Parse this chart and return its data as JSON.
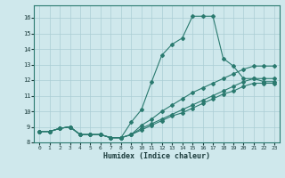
{
  "xlabel": "Humidex (Indice chaleur)",
  "xlim": [
    -0.5,
    23.5
  ],
  "ylim": [
    8.0,
    16.8
  ],
  "xticks": [
    0,
    1,
    2,
    3,
    4,
    5,
    6,
    7,
    8,
    9,
    10,
    11,
    12,
    13,
    14,
    15,
    16,
    17,
    18,
    19,
    20,
    21,
    22,
    23
  ],
  "yticks": [
    8,
    9,
    10,
    11,
    12,
    13,
    14,
    15,
    16
  ],
  "bg_color": "#cfe8ec",
  "line_color": "#2a7a6f",
  "grid_color": "#aacdd4",
  "s1_x": [
    0,
    1,
    2,
    3,
    4,
    5,
    6,
    7,
    8,
    9,
    10,
    11,
    12,
    13,
    14,
    15,
    16,
    17,
    18,
    19,
    20,
    21,
    22,
    23
  ],
  "s1_y": [
    8.7,
    8.7,
    8.9,
    9.0,
    8.5,
    8.5,
    8.5,
    8.3,
    8.3,
    9.3,
    10.1,
    11.9,
    13.6,
    14.3,
    14.7,
    16.1,
    16.1,
    16.1,
    13.4,
    12.9,
    12.1,
    12.1,
    11.9,
    11.9
  ],
  "s2_x": [
    0,
    1,
    2,
    3,
    4,
    5,
    6,
    7,
    8,
    9,
    10,
    11,
    12,
    13,
    14,
    15,
    16,
    17,
    18,
    19,
    20,
    21,
    22,
    23
  ],
  "s2_y": [
    8.7,
    8.7,
    8.9,
    9.0,
    8.5,
    8.5,
    8.5,
    8.3,
    8.3,
    8.5,
    9.1,
    9.5,
    10.0,
    10.4,
    10.8,
    11.2,
    11.5,
    11.8,
    12.1,
    12.4,
    12.7,
    12.9,
    12.9,
    12.9
  ],
  "s3_x": [
    0,
    1,
    2,
    3,
    4,
    5,
    6,
    7,
    8,
    9,
    10,
    11,
    12,
    13,
    14,
    15,
    16,
    17,
    18,
    19,
    20,
    21,
    22,
    23
  ],
  "s3_y": [
    8.7,
    8.7,
    8.9,
    9.0,
    8.5,
    8.5,
    8.5,
    8.3,
    8.3,
    8.5,
    8.9,
    9.2,
    9.5,
    9.8,
    10.1,
    10.4,
    10.7,
    11.0,
    11.3,
    11.6,
    11.9,
    12.1,
    12.1,
    12.1
  ],
  "s4_x": [
    0,
    1,
    2,
    3,
    4,
    5,
    6,
    7,
    8,
    9,
    10,
    11,
    12,
    13,
    14,
    15,
    16,
    17,
    18,
    19,
    20,
    21,
    22,
    23
  ],
  "s4_y": [
    8.7,
    8.7,
    8.9,
    9.0,
    8.5,
    8.5,
    8.5,
    8.3,
    8.3,
    8.5,
    8.8,
    9.1,
    9.4,
    9.7,
    9.9,
    10.2,
    10.5,
    10.8,
    11.1,
    11.3,
    11.6,
    11.8,
    11.8,
    11.8
  ]
}
